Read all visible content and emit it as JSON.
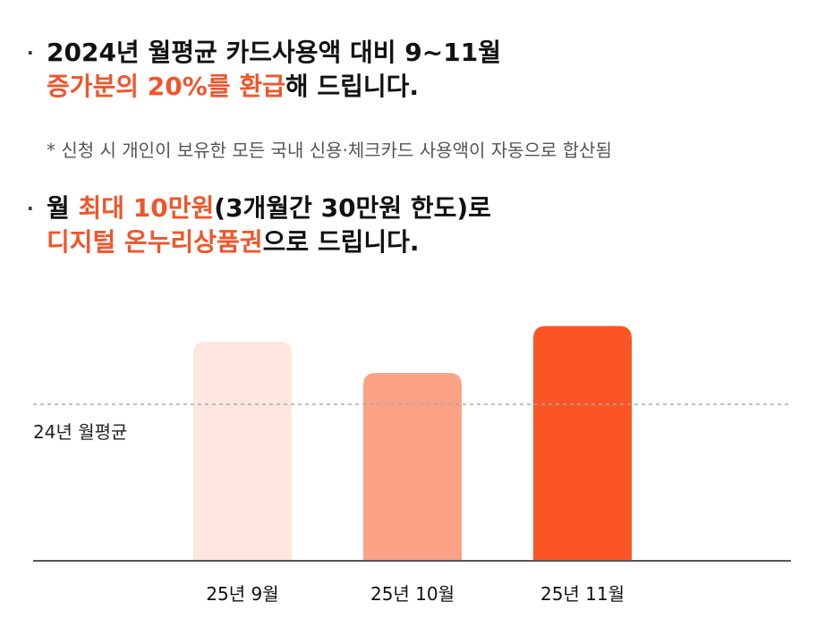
{
  "bullets": [
    {
      "line1": [
        {
          "text": "2024년 월평균 카드사용액 대비 9~11월",
          "hl": false
        }
      ],
      "line2": [
        {
          "text": "증가분의 20%를 환급",
          "hl": true
        },
        {
          "text": "해 드립니다.",
          "hl": false
        }
      ]
    },
    {
      "line1": [
        {
          "text": "월 ",
          "hl": false
        },
        {
          "text": "최대 10만원",
          "hl": true
        },
        {
          "text": "(3개월간 30만원 한도)로",
          "hl": false
        }
      ],
      "line2": [
        {
          "text": "디지털 온누리상품권",
          "hl": true
        },
        {
          "text": "으로 드립니다.",
          "hl": false
        }
      ]
    }
  ],
  "bullet_symbol": "·",
  "note": "* 신청 시 개인이 보유한 모든 국내 신용·체크카드 사용액이 자동으로 합산됨",
  "colors": {
    "highlight": "#f0552a",
    "bar_colors": [
      "#fde6de",
      "#fba186",
      "#fb5525"
    ],
    "baseline": "#555555",
    "avg_line": "#aaaaaa"
  },
  "chart_data": {
    "type": "bar",
    "categories": [
      "25년 9월",
      "25년 10월",
      "25년 11월"
    ],
    "values": [
      1.4,
      1.2,
      1.5
    ],
    "reference_line": {
      "label": "24년 월평균",
      "value": 1.0
    },
    "ylim": [
      0,
      1.6
    ],
    "grid": false,
    "note": "Values are relative estimates; the chart has no numeric axis."
  }
}
